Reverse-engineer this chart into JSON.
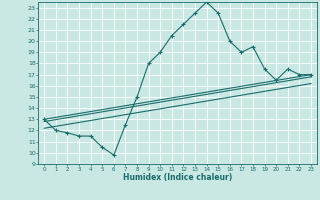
{
  "xlabel": "Humidex (Indice chaleur)",
  "xlim": [
    -0.5,
    23.5
  ],
  "ylim": [
    9,
    23.5
  ],
  "xticks": [
    0,
    1,
    2,
    3,
    4,
    5,
    6,
    7,
    8,
    9,
    10,
    11,
    12,
    13,
    14,
    15,
    16,
    17,
    18,
    19,
    20,
    21,
    22,
    23
  ],
  "yticks": [
    9,
    10,
    11,
    12,
    13,
    14,
    15,
    16,
    17,
    18,
    19,
    20,
    21,
    22,
    23
  ],
  "bg_color": "#c9e8e4",
  "line_color": "#1a6b6b",
  "grid_color": "#ffffff",
  "main_line_x": [
    0,
    1,
    2,
    3,
    4,
    5,
    6,
    7,
    8,
    9,
    10,
    11,
    12,
    13,
    14,
    15,
    16,
    17,
    18,
    19,
    20,
    21,
    22,
    23
  ],
  "main_line_y": [
    13.0,
    12.0,
    11.8,
    11.5,
    11.5,
    10.5,
    9.8,
    12.5,
    15.0,
    18.0,
    19.0,
    20.5,
    21.5,
    22.5,
    23.5,
    22.5,
    20.0,
    19.0,
    19.5,
    17.5,
    16.5,
    17.5,
    17.0,
    17.0
  ],
  "line2_x": [
    0,
    23
  ],
  "line2_y": [
    13.0,
    17.0
  ],
  "line3_x": [
    0,
    23
  ],
  "line3_y": [
    12.8,
    16.8
  ],
  "line4_x": [
    0,
    23
  ],
  "line4_y": [
    12.2,
    16.2
  ]
}
